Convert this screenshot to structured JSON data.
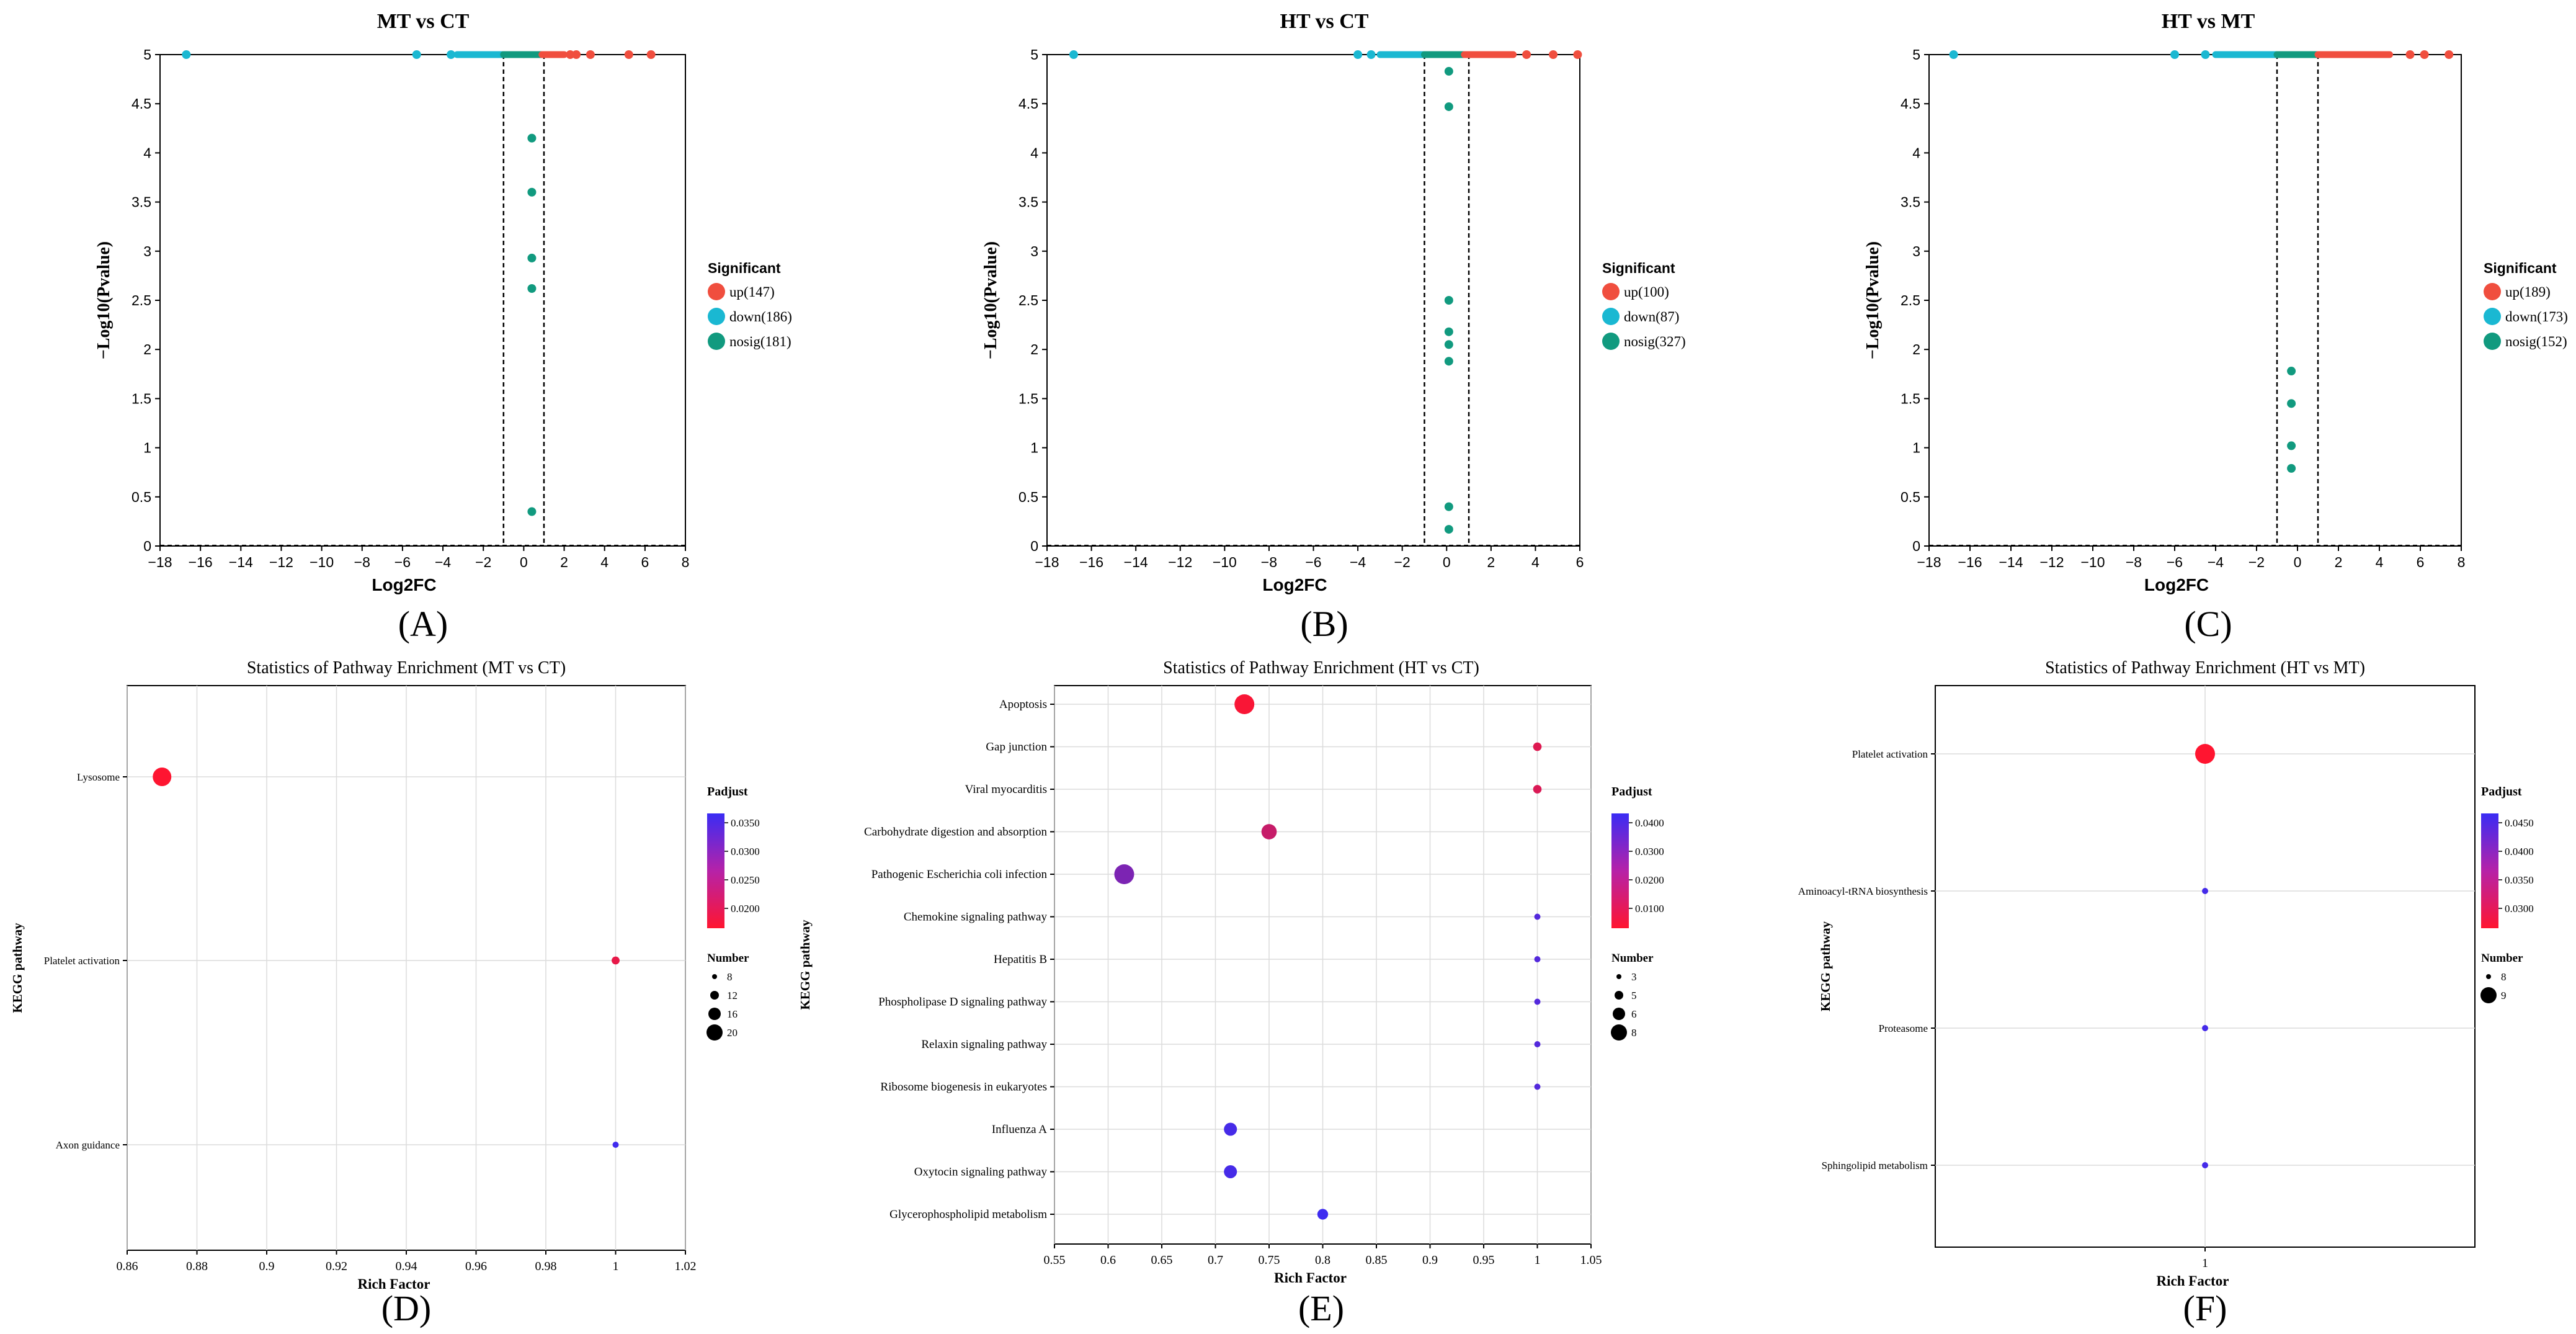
{
  "chart_data": [
    {
      "type": "scatter",
      "panel": "(A)",
      "title": "MT vs CT",
      "xlabel": "Log2FC",
      "ylabel": "−Log10(Pvalue)",
      "xlim": [
        -18,
        8
      ],
      "ylim": [
        0,
        5
      ],
      "xticks": [
        "−18",
        "−16",
        "−14",
        "−12",
        "−10",
        "−8",
        "−6",
        "−4",
        "−2",
        "0",
        "2",
        "4",
        "6",
        "8"
      ],
      "yticks": [
        "0",
        "0.5",
        "1",
        "1.5",
        "2",
        "2.5",
        "3",
        "3.5",
        "4",
        "4.5",
        "5"
      ],
      "fc_threshold": 1,
      "legend_title": "Significant",
      "legend": [
        {
          "key": "up",
          "label": "up(147)",
          "color": "#f04e3e"
        },
        {
          "key": "down",
          "label": "down(186)",
          "color": "#1ab8d2"
        },
        {
          "key": "nosig",
          "label": "nosig(181)",
          "color": "#119a7f"
        }
      ],
      "top_bands": [
        {
          "group": "down",
          "x0": -3.3,
          "x1": -1.0
        },
        {
          "group": "nosig",
          "x0": -1.0,
          "x1": 0.9
        },
        {
          "group": "up",
          "x0": 0.9,
          "x1": 2.0
        }
      ],
      "points": [
        {
          "x": -16.7,
          "y": 5,
          "group": "down"
        },
        {
          "x": -5.3,
          "y": 5,
          "group": "down"
        },
        {
          "x": -3.6,
          "y": 5,
          "group": "down"
        },
        {
          "x": 2.3,
          "y": 5,
          "group": "up"
        },
        {
          "x": 2.6,
          "y": 5,
          "group": "up"
        },
        {
          "x": 3.3,
          "y": 5,
          "group": "up"
        },
        {
          "x": 5.2,
          "y": 5,
          "group": "up"
        },
        {
          "x": 6.3,
          "y": 5,
          "group": "up"
        },
        {
          "x": 0.4,
          "y": 4.15,
          "group": "nosig"
        },
        {
          "x": 0.4,
          "y": 3.6,
          "group": "nosig"
        },
        {
          "x": 0.4,
          "y": 2.93,
          "group": "nosig"
        },
        {
          "x": 0.4,
          "y": 2.62,
          "group": "nosig"
        },
        {
          "x": 0.4,
          "y": 0.35,
          "group": "nosig"
        }
      ]
    },
    {
      "type": "scatter",
      "panel": "(B)",
      "title": "HT vs CT",
      "xlabel": "Log2FC",
      "ylabel": "−Log10(Pvalue)",
      "xlim": [
        -18,
        6
      ],
      "ylim": [
        0,
        5
      ],
      "xticks": [
        "−18",
        "−16",
        "−14",
        "−12",
        "−10",
        "−8",
        "−6",
        "−4",
        "−2",
        "0",
        "2",
        "4",
        "6"
      ],
      "yticks": [
        "0",
        "0.5",
        "1",
        "1.5",
        "2",
        "2.5",
        "3",
        "3.5",
        "4",
        "4.5",
        "5"
      ],
      "fc_threshold": 1,
      "legend_title": "Significant",
      "legend": [
        {
          "key": "up",
          "label": "up(100)",
          "color": "#f04e3e"
        },
        {
          "key": "down",
          "label": "down(87)",
          "color": "#1ab8d2"
        },
        {
          "key": "nosig",
          "label": "nosig(327)",
          "color": "#119a7f"
        }
      ],
      "top_bands": [
        {
          "group": "down",
          "x0": -3.0,
          "x1": -1.0
        },
        {
          "group": "nosig",
          "x0": -1.0,
          "x1": 0.8
        },
        {
          "group": "up",
          "x0": 0.8,
          "x1": 3.0
        }
      ],
      "points": [
        {
          "x": -16.8,
          "y": 5,
          "group": "down"
        },
        {
          "x": -4.0,
          "y": 5,
          "group": "down"
        },
        {
          "x": -3.4,
          "y": 5,
          "group": "down"
        },
        {
          "x": 3.6,
          "y": 5,
          "group": "up"
        },
        {
          "x": 4.8,
          "y": 5,
          "group": "up"
        },
        {
          "x": 5.9,
          "y": 5,
          "group": "up"
        },
        {
          "x": 0.1,
          "y": 4.83,
          "group": "nosig"
        },
        {
          "x": 0.1,
          "y": 4.47,
          "group": "nosig"
        },
        {
          "x": 0.1,
          "y": 2.5,
          "group": "nosig"
        },
        {
          "x": 0.1,
          "y": 2.18,
          "group": "nosig"
        },
        {
          "x": 0.1,
          "y": 2.05,
          "group": "nosig"
        },
        {
          "x": 0.1,
          "y": 1.88,
          "group": "nosig"
        },
        {
          "x": 0.1,
          "y": 0.4,
          "group": "nosig"
        },
        {
          "x": 0.1,
          "y": 0.17,
          "group": "nosig"
        }
      ]
    },
    {
      "type": "scatter",
      "panel": "(C)",
      "title": "HT vs MT",
      "xlabel": "Log2FC",
      "ylabel": "−Log10(Pvalue)",
      "xlim": [
        -18,
        8
      ],
      "ylim": [
        0,
        5
      ],
      "xticks": [
        "−18",
        "−16",
        "−14",
        "−12",
        "−10",
        "−8",
        "−6",
        "−4",
        "−2",
        "0",
        "2",
        "4",
        "6",
        "8"
      ],
      "yticks": [
        "0",
        "0.5",
        "1",
        "1.5",
        "2",
        "2.5",
        "3",
        "3.5",
        "4",
        "4.5",
        "5"
      ],
      "fc_threshold": 1,
      "legend_title": "Significant",
      "legend": [
        {
          "key": "up",
          "label": "up(189)",
          "color": "#f04e3e"
        },
        {
          "key": "down",
          "label": "down(173)",
          "color": "#1ab8d2"
        },
        {
          "key": "nosig",
          "label": "nosig(152)",
          "color": "#119a7f"
        }
      ],
      "top_bands": [
        {
          "group": "down",
          "x0": -4.0,
          "x1": -1.0
        },
        {
          "group": "nosig",
          "x0": -1.0,
          "x1": 1.0
        },
        {
          "group": "up",
          "x0": 1.0,
          "x1": 4.5
        }
      ],
      "points": [
        {
          "x": -16.8,
          "y": 5,
          "group": "down"
        },
        {
          "x": -6.0,
          "y": 5,
          "group": "down"
        },
        {
          "x": -4.5,
          "y": 5,
          "group": "down"
        },
        {
          "x": 5.5,
          "y": 5,
          "group": "up"
        },
        {
          "x": 6.2,
          "y": 5,
          "group": "up"
        },
        {
          "x": 7.4,
          "y": 5,
          "group": "up"
        },
        {
          "x": -0.3,
          "y": 1.78,
          "group": "nosig"
        },
        {
          "x": -0.3,
          "y": 1.45,
          "group": "nosig"
        },
        {
          "x": -0.3,
          "y": 1.02,
          "group": "nosig"
        },
        {
          "x": -0.3,
          "y": 0.79,
          "group": "nosig"
        }
      ]
    },
    {
      "type": "bubble",
      "panel": "(D)",
      "title": "Statistics of Pathway Enrichment (MT vs CT)",
      "xlabel": "Rich Factor",
      "ylabel": "KEGG pathway",
      "xlim": [
        0.86,
        1.02
      ],
      "xticks": [
        "0.86",
        "0.88",
        "0.9",
        "0.92",
        "0.94",
        "0.96",
        "0.98",
        "1",
        "1.02"
      ],
      "categories": [
        "Lysosome",
        "Platelet activation",
        "Axon guidance"
      ],
      "values": [
        0.87,
        1.0,
        1.0
      ],
      "number": [
        20,
        8,
        6
      ],
      "padjust": [
        0.0196,
        0.0215,
        0.0355
      ],
      "padj_range": [
        0.0195,
        0.036
      ],
      "color_legend_title": "Padjust",
      "color_ticks": [
        "0.0350",
        "0.0300",
        "0.0250",
        "0.0200"
      ],
      "size_legend_title": "Number",
      "size_legend": [
        "8",
        "12",
        "16",
        "20"
      ]
    },
    {
      "type": "bubble",
      "panel": "(E)",
      "title": "Statistics of Pathway Enrichment (HT vs CT)",
      "xlabel": "Rich Factor",
      "ylabel": "KEGG pathway",
      "xlim": [
        0.55,
        1.05
      ],
      "xticks": [
        "0.55",
        "0.6",
        "0.65",
        "0.7",
        "0.75",
        "0.8",
        "0.85",
        "0.9",
        "0.95",
        "1",
        "1.05"
      ],
      "categories": [
        "Apoptosis",
        "Gap junction",
        "Viral myocarditis",
        "Carbohydrate digestion and absorption",
        "Pathogenic Escherichia coli infection",
        "Chemokine signaling pathway",
        "Hepatitis B",
        "Phospholipase D signaling pathway",
        "Relaxin signaling pathway",
        "Ribosome biogenesis in eukaryotes",
        "Influenza A",
        "Oxytocin signaling pathway",
        "Glycerophospholipid metabolism"
      ],
      "values": [
        0.727,
        1.0,
        1.0,
        0.75,
        0.615,
        1.0,
        1.0,
        1.0,
        1.0,
        1.0,
        0.714,
        0.714,
        0.8
      ],
      "number": [
        8,
        3,
        3,
        6,
        8,
        2,
        2,
        2,
        2,
        2,
        5,
        5,
        4
      ],
      "padjust": [
        0.0015,
        0.008,
        0.009,
        0.014,
        0.032,
        0.042,
        0.042,
        0.042,
        0.042,
        0.042,
        0.045,
        0.045,
        0.047
      ],
      "padj_range": [
        0.0,
        0.048
      ],
      "color_legend_title": "Padjust",
      "color_ticks": [
        "0.0400",
        "0.0300",
        "0.0200",
        "0.0100"
      ],
      "size_legend_title": "Number",
      "size_legend": [
        "3",
        "5",
        "6",
        "8"
      ]
    },
    {
      "type": "bubble",
      "panel": "(F)",
      "title": "Statistics of Pathway Enrichment (HT vs MT)",
      "xlabel": "Rich Factor",
      "ylabel": "KEGG pathway",
      "xlim": [
        0.9,
        1.1
      ],
      "xticks": [
        "1"
      ],
      "categories": [
        "Platelet activation",
        "Aminoacyl-tRNA biosynthesis",
        "Proteasome",
        "Sphingolipid metabolism"
      ],
      "values": [
        1.0,
        1.0,
        1.0,
        1.0
      ],
      "number": [
        9,
        8,
        8,
        8
      ],
      "padjust": [
        0.03,
        0.047,
        0.047,
        0.047
      ],
      "padj_range": [
        0.03,
        0.048
      ],
      "color_legend_title": "Padjust",
      "color_ticks": [
        "0.0450",
        "0.0400",
        "0.0350",
        "0.0300"
      ],
      "size_legend_title": "Number",
      "size_legend": [
        "8",
        "9"
      ]
    }
  ]
}
